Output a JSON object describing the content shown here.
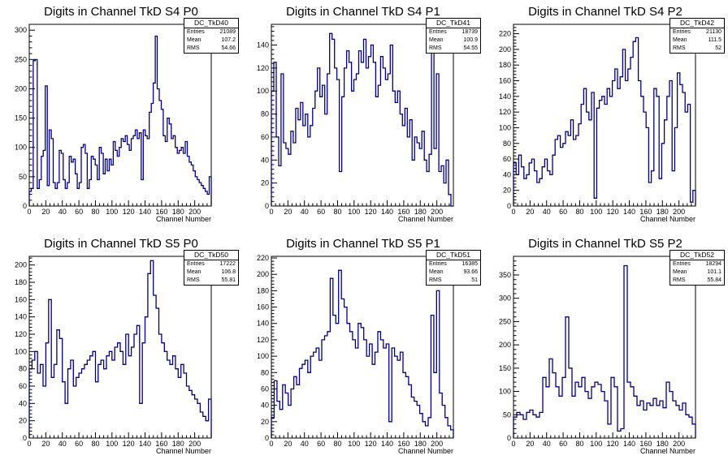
{
  "colors": {
    "histogram": "#000080",
    "axis": "#000000",
    "background": "#ffffff"
  },
  "stats_labels": {
    "entries": "Entries",
    "mean": "Mean",
    "rms": "RMS"
  },
  "chart_data": [
    {
      "type": "histogram",
      "title": "Digits in Channel TkD S4 P0",
      "xlabel": "Channel Number",
      "ylabel": "",
      "xlim": [
        0,
        220
      ],
      "ylim": [
        0,
        310
      ],
      "xticks": [
        0,
        20,
        40,
        60,
        80,
        100,
        120,
        140,
        160,
        180,
        200
      ],
      "yticks": [
        0,
        50,
        100,
        150,
        200,
        250,
        300
      ],
      "stats": {
        "name": "DC_TkD40",
        "entries": "21089",
        "mean": "107.2",
        "rms": "54.66"
      },
      "values": [
        25,
        30,
        248,
        250,
        30,
        45,
        85,
        95,
        205,
        35,
        130,
        115,
        40,
        30,
        40,
        95,
        90,
        45,
        30,
        40,
        85,
        75,
        80,
        55,
        30,
        40,
        100,
        105,
        90,
        30,
        45,
        85,
        80,
        70,
        45,
        100,
        90,
        55,
        80,
        60,
        80,
        70,
        110,
        95,
        85,
        100,
        115,
        110,
        120,
        105,
        95,
        115,
        120,
        130,
        115,
        125,
        45,
        130,
        120,
        115,
        160,
        175,
        210,
        290,
        200,
        180,
        165,
        120,
        110,
        150,
        140,
        115,
        120,
        100,
        90,
        95,
        100,
        90,
        110,
        85,
        75,
        70,
        60,
        50,
        45,
        40,
        35,
        30,
        25,
        20,
        50
      ]
    },
    {
      "type": "histogram",
      "title": "Digits in Channel TkD S4 P1",
      "xlabel": "Channel Number",
      "ylabel": "",
      "xlim": [
        0,
        220
      ],
      "ylim": [
        0,
        158
      ],
      "xticks": [
        0,
        20,
        40,
        60,
        80,
        100,
        120,
        140,
        160,
        180,
        200
      ],
      "yticks": [
        0,
        20,
        40,
        60,
        80,
        100,
        120,
        140
      ],
      "stats": {
        "name": "DC_TkD41",
        "entries": "18739",
        "mean": "100.9",
        "rms": "54.55"
      },
      "values": [
        100,
        125,
        60,
        35,
        115,
        55,
        50,
        45,
        65,
        55,
        85,
        75,
        90,
        70,
        80,
        60,
        70,
        85,
        100,
        120,
        95,
        105,
        80,
        115,
        150,
        145,
        120,
        110,
        30,
        95,
        120,
        135,
        125,
        100,
        110,
        115,
        135,
        125,
        145,
        120,
        130,
        140,
        125,
        95,
        105,
        130,
        120,
        110,
        115,
        140,
        100,
        90,
        100,
        80,
        70,
        85,
        60,
        75,
        40,
        60,
        55,
        50,
        65,
        40,
        30,
        45,
        145,
        50,
        115,
        30,
        35,
        20,
        40,
        10,
        0
      ]
    },
    {
      "type": "histogram",
      "title": "Digits in Channel TkD S4 P2",
      "xlabel": "Channel Number",
      "ylabel": "",
      "xlim": [
        0,
        220
      ],
      "ylim": [
        0,
        232
      ],
      "xticks": [
        0,
        20,
        40,
        60,
        80,
        100,
        120,
        140,
        160,
        180,
        200
      ],
      "yticks": [
        0,
        20,
        40,
        60,
        80,
        100,
        120,
        140,
        160,
        180,
        200,
        220
      ],
      "stats": {
        "name": "DC_TkD42",
        "entries": "21130",
        "mean": "111.5",
        "rms": "52"
      },
      "values": [
        55,
        40,
        65,
        50,
        35,
        40,
        55,
        60,
        45,
        30,
        35,
        50,
        60,
        45,
        40,
        65,
        85,
        90,
        75,
        80,
        95,
        90,
        110,
        85,
        90,
        105,
        130,
        150,
        120,
        110,
        145,
        10,
        125,
        135,
        140,
        130,
        150,
        140,
        160,
        175,
        150,
        165,
        200,
        160,
        175,
        190,
        210,
        215,
        160,
        140,
        120,
        100,
        30,
        45,
        150,
        140,
        35,
        80,
        110,
        140,
        160,
        45,
        100,
        170,
        155,
        145,
        120,
        130,
        5,
        20
      ]
    },
    {
      "type": "histogram",
      "title": "Digits in Channel TkD S5 P0",
      "xlabel": "Channel Number",
      "ylabel": "",
      "xlim": [
        0,
        220
      ],
      "ylim": [
        0,
        210
      ],
      "xticks": [
        0,
        20,
        40,
        60,
        80,
        100,
        120,
        140,
        160,
        180,
        200
      ],
      "yticks": [
        0,
        20,
        40,
        60,
        80,
        100,
        120,
        140,
        160,
        180,
        200
      ],
      "stats": {
        "name": "DC_TkD50",
        "entries": "17222",
        "mean": "106.8",
        "rms": "55.81"
      },
      "values": [
        80,
        90,
        100,
        75,
        85,
        60,
        110,
        160,
        70,
        85,
        125,
        115,
        65,
        40,
        80,
        90,
        60,
        70,
        75,
        80,
        85,
        90,
        95,
        100,
        65,
        85,
        90,
        80,
        95,
        100,
        90,
        105,
        110,
        100,
        85,
        120,
        95,
        105,
        120,
        130,
        40,
        110,
        140,
        190,
        205,
        165,
        150,
        120,
        110,
        100,
        90,
        85,
        95,
        80,
        70,
        85,
        75,
        60,
        55,
        50,
        45,
        40,
        30,
        25,
        20,
        45
      ]
    },
    {
      "type": "histogram",
      "title": "Digits in Channel TkD S5 P1",
      "xlabel": "Channel Number",
      "ylabel": "",
      "xlim": [
        0,
        220
      ],
      "ylim": [
        0,
        222
      ],
      "xticks": [
        0,
        20,
        40,
        60,
        80,
        100,
        120,
        140,
        160,
        180,
        200
      ],
      "yticks": [
        0,
        20,
        40,
        60,
        80,
        100,
        120,
        140,
        160,
        180,
        200,
        220
      ],
      "stats": {
        "name": "DC_TkD51",
        "entries": "16385",
        "mean": "93.66",
        "rms": "51"
      },
      "values": [
        25,
        70,
        45,
        35,
        65,
        55,
        40,
        60,
        75,
        65,
        85,
        90,
        95,
        80,
        100,
        105,
        110,
        95,
        120,
        125,
        130,
        195,
        150,
        140,
        205,
        170,
        160,
        140,
        130,
        120,
        110,
        140,
        135,
        120,
        100,
        115,
        90,
        105,
        130,
        120,
        110,
        115,
        20,
        110,
        100,
        95,
        105,
        80,
        75,
        65,
        50,
        45,
        40,
        30,
        20,
        15,
        25,
        150,
        80,
        180,
        55,
        40,
        25,
        15,
        10
      ]
    },
    {
      "type": "histogram",
      "title": "Digits in Channel TkD S5 P2",
      "xlabel": "Channel Number",
      "ylabel": "",
      "xlim": [
        0,
        220
      ],
      "ylim": [
        0,
        390
      ],
      "xticks": [
        0,
        20,
        40,
        60,
        80,
        100,
        120,
        140,
        160,
        180,
        200
      ],
      "yticks": [
        0,
        50,
        100,
        150,
        200,
        250,
        300,
        350
      ],
      "stats": {
        "name": "DC_TkD52",
        "entries": "18294",
        "mean": "101.1",
        "rms": "55.84"
      },
      "values": [
        45,
        55,
        50,
        40,
        55,
        60,
        50,
        45,
        55,
        130,
        110,
        170,
        140,
        110,
        90,
        130,
        260,
        150,
        90,
        120,
        110,
        130,
        100,
        85,
        110,
        120,
        115,
        100,
        80,
        30,
        130,
        110,
        15,
        20,
        370,
        120,
        110,
        90,
        70,
        80,
        60,
        75,
        70,
        85,
        70,
        80,
        65,
        120,
        100,
        80,
        70,
        60,
        75,
        50,
        45,
        30
      ]
    }
  ]
}
